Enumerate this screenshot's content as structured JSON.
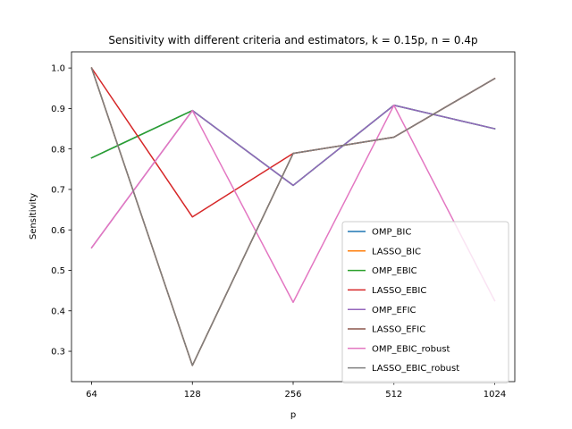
{
  "chart_data": {
    "type": "line",
    "title": "Sensitivity with different criteria and estimators, k = 0.15p, n = 0.4p",
    "xlabel": "p",
    "ylabel": "Sensitivity",
    "categories": [
      "64",
      "128",
      "256",
      "512",
      "1024"
    ],
    "ylim": [
      0.225,
      1.04
    ],
    "yticks": [
      "0.3",
      "0.4",
      "0.5",
      "0.6",
      "0.7",
      "0.8",
      "0.9",
      "1.0"
    ],
    "ytick_values": [
      0.3,
      0.4,
      0.5,
      0.6,
      0.7,
      0.8,
      0.9,
      1.0
    ],
    "grid": false,
    "legend_position": "lower right",
    "series": [
      {
        "name": "OMP_BIC",
        "color": "#1f77b4",
        "values": [
          0.778,
          0.895,
          0.71,
          0.908,
          0.85
        ]
      },
      {
        "name": "LASSO_BIC",
        "color": "#ff7f0e",
        "values": [
          1.0,
          0.265,
          0.789,
          0.829,
          0.974
        ]
      },
      {
        "name": "OMP_EBIC",
        "color": "#2ca02c",
        "values": [
          0.778,
          0.895,
          0.71,
          0.908,
          0.85
        ]
      },
      {
        "name": "LASSO_EBIC",
        "color": "#d62728",
        "values": [
          1.0,
          0.632,
          0.789,
          0.829,
          0.974
        ]
      },
      {
        "name": "OMP_EFIC",
        "color": "#9467bd",
        "values": [
          0.556,
          0.895,
          0.71,
          0.908,
          0.85
        ]
      },
      {
        "name": "LASSO_EFIC",
        "color": "#8c564b",
        "values": [
          1.0,
          0.265,
          0.789,
          0.829,
          0.974
        ]
      },
      {
        "name": "OMP_EBIC_robust",
        "color": "#e377c2",
        "values": [
          0.556,
          0.895,
          0.421,
          0.908,
          0.425
        ]
      },
      {
        "name": "LASSO_EBIC_robust",
        "color": "#7f7f7f",
        "values": [
          1.0,
          0.265,
          0.789,
          0.829,
          0.974
        ]
      }
    ]
  }
}
